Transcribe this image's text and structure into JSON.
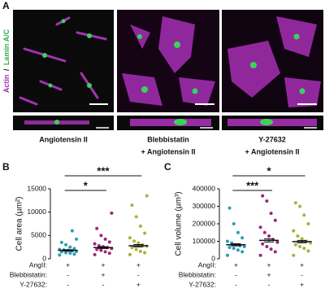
{
  "figure": {
    "panel_labels": [
      "A",
      "B",
      "C"
    ],
    "stain_label": [
      "Actin",
      "/",
      "Lamin A/C"
    ],
    "captions": [
      [
        "Angiotensin II"
      ],
      [
        "Blebbistatin",
        "+ Angiotensin II"
      ],
      [
        "Y-27632",
        "+ Angiotensin II"
      ]
    ]
  },
  "chart_data": [
    {
      "type": "dotplot",
      "y_label": "Cell area (µm²)",
      "ylim": [
        0,
        15000
      ],
      "yticks": [
        0,
        5000,
        10000,
        15000
      ],
      "row_labels": [
        "AngII:",
        "Blebbistatin:",
        "Y-27632:"
      ],
      "brackets": [
        "*",
        "***"
      ],
      "groups": [
        {
          "color": "#2a9db5",
          "signs": [
            "+",
            "-",
            "-"
          ],
          "mean": 1800,
          "sem": 150,
          "values": [
            800,
            1000,
            1200,
            1300,
            1500,
            1600,
            1700,
            1800,
            1900,
            2000,
            2200,
            2500,
            3000,
            3500,
            4200,
            6000
          ]
        },
        {
          "color": "#a0237e",
          "signs": [
            "+",
            "+",
            "-"
          ],
          "mean": 2400,
          "sem": 200,
          "values": [
            900,
            1200,
            1500,
            1800,
            2000,
            2200,
            2400,
            2600,
            2800,
            3200,
            3600,
            4200,
            5000,
            6500,
            9800
          ]
        },
        {
          "color": "#a8b33a",
          "signs": [
            "+",
            "-",
            "+"
          ],
          "mean": 2800,
          "sem": 250,
          "values": [
            900,
            1300,
            1600,
            2000,
            2400,
            2700,
            3000,
            3400,
            3800,
            4500,
            5500,
            7000,
            9000,
            11500,
            13500
          ]
        }
      ]
    },
    {
      "type": "dotplot",
      "y_label": "Cell volume (µm³)",
      "ylim": [
        0,
        400000
      ],
      "yticks": [
        0,
        100000,
        200000,
        300000,
        400000
      ],
      "row_labels": [
        "AngII:",
        "Blebbistatin:",
        "Y-27632:"
      ],
      "brackets": [
        "***",
        "*"
      ],
      "groups": [
        {
          "color": "#2a9db5",
          "signs": [
            "+",
            "-",
            "-"
          ],
          "mean": 80000,
          "sem": 6000,
          "values": [
            20000,
            40000,
            50000,
            60000,
            65000,
            70000,
            75000,
            80000,
            90000,
            100000,
            120000,
            150000,
            200000,
            290000
          ]
        },
        {
          "color": "#a0237e",
          "signs": [
            "+",
            "+",
            "-"
          ],
          "mean": 105000,
          "sem": 9000,
          "values": [
            20000,
            40000,
            55000,
            70000,
            85000,
            95000,
            110000,
            130000,
            150000,
            180000,
            220000,
            260000,
            330000,
            360000
          ]
        },
        {
          "color": "#a8b33a",
          "signs": [
            "+",
            "-",
            "+"
          ],
          "mean": 98000,
          "sem": 7000,
          "values": [
            20000,
            45000,
            60000,
            70000,
            80000,
            90000,
            100000,
            115000,
            130000,
            160000,
            200000,
            250000,
            300000,
            320000
          ]
        }
      ]
    }
  ]
}
